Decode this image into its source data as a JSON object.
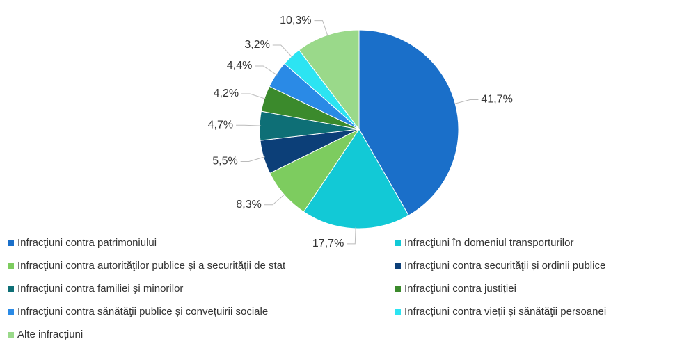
{
  "chart_data": {
    "type": "pie",
    "categories": [
      "Infracţiuni contra patrimoniului",
      "Infracţiuni în domeniul transporturilor",
      "Infracţiuni contra autorităţilor publice și a securității de stat",
      "Infracţiuni contra securităţii și ordinii publice",
      "Infracţiuni contra familiei şi minorilor",
      "Infracţiuni contra justiției",
      "Infracţiuni contra sănătăţii publice și convețuirii sociale",
      "Infracțiuni contra vieții și sănătăţii persoanei",
      "Alte infracțiuni"
    ],
    "values": [
      41.7,
      17.7,
      8.3,
      5.5,
      4.7,
      4.2,
      4.4,
      3.2,
      10.3
    ],
    "value_labels": [
      "41,7%",
      "17,7%",
      "8,3%",
      "5,5%",
      "4,7%",
      "4,2%",
      "4,4%",
      "3,2%",
      "10,3%"
    ],
    "colors": [
      "#1a6fc9",
      "#12c9d6",
      "#7dcc5f",
      "#0c3f78",
      "#0e6f76",
      "#3b8a2c",
      "#2a8ae6",
      "#2ce4f2",
      "#9ad98a"
    ],
    "legend": "bottom"
  }
}
